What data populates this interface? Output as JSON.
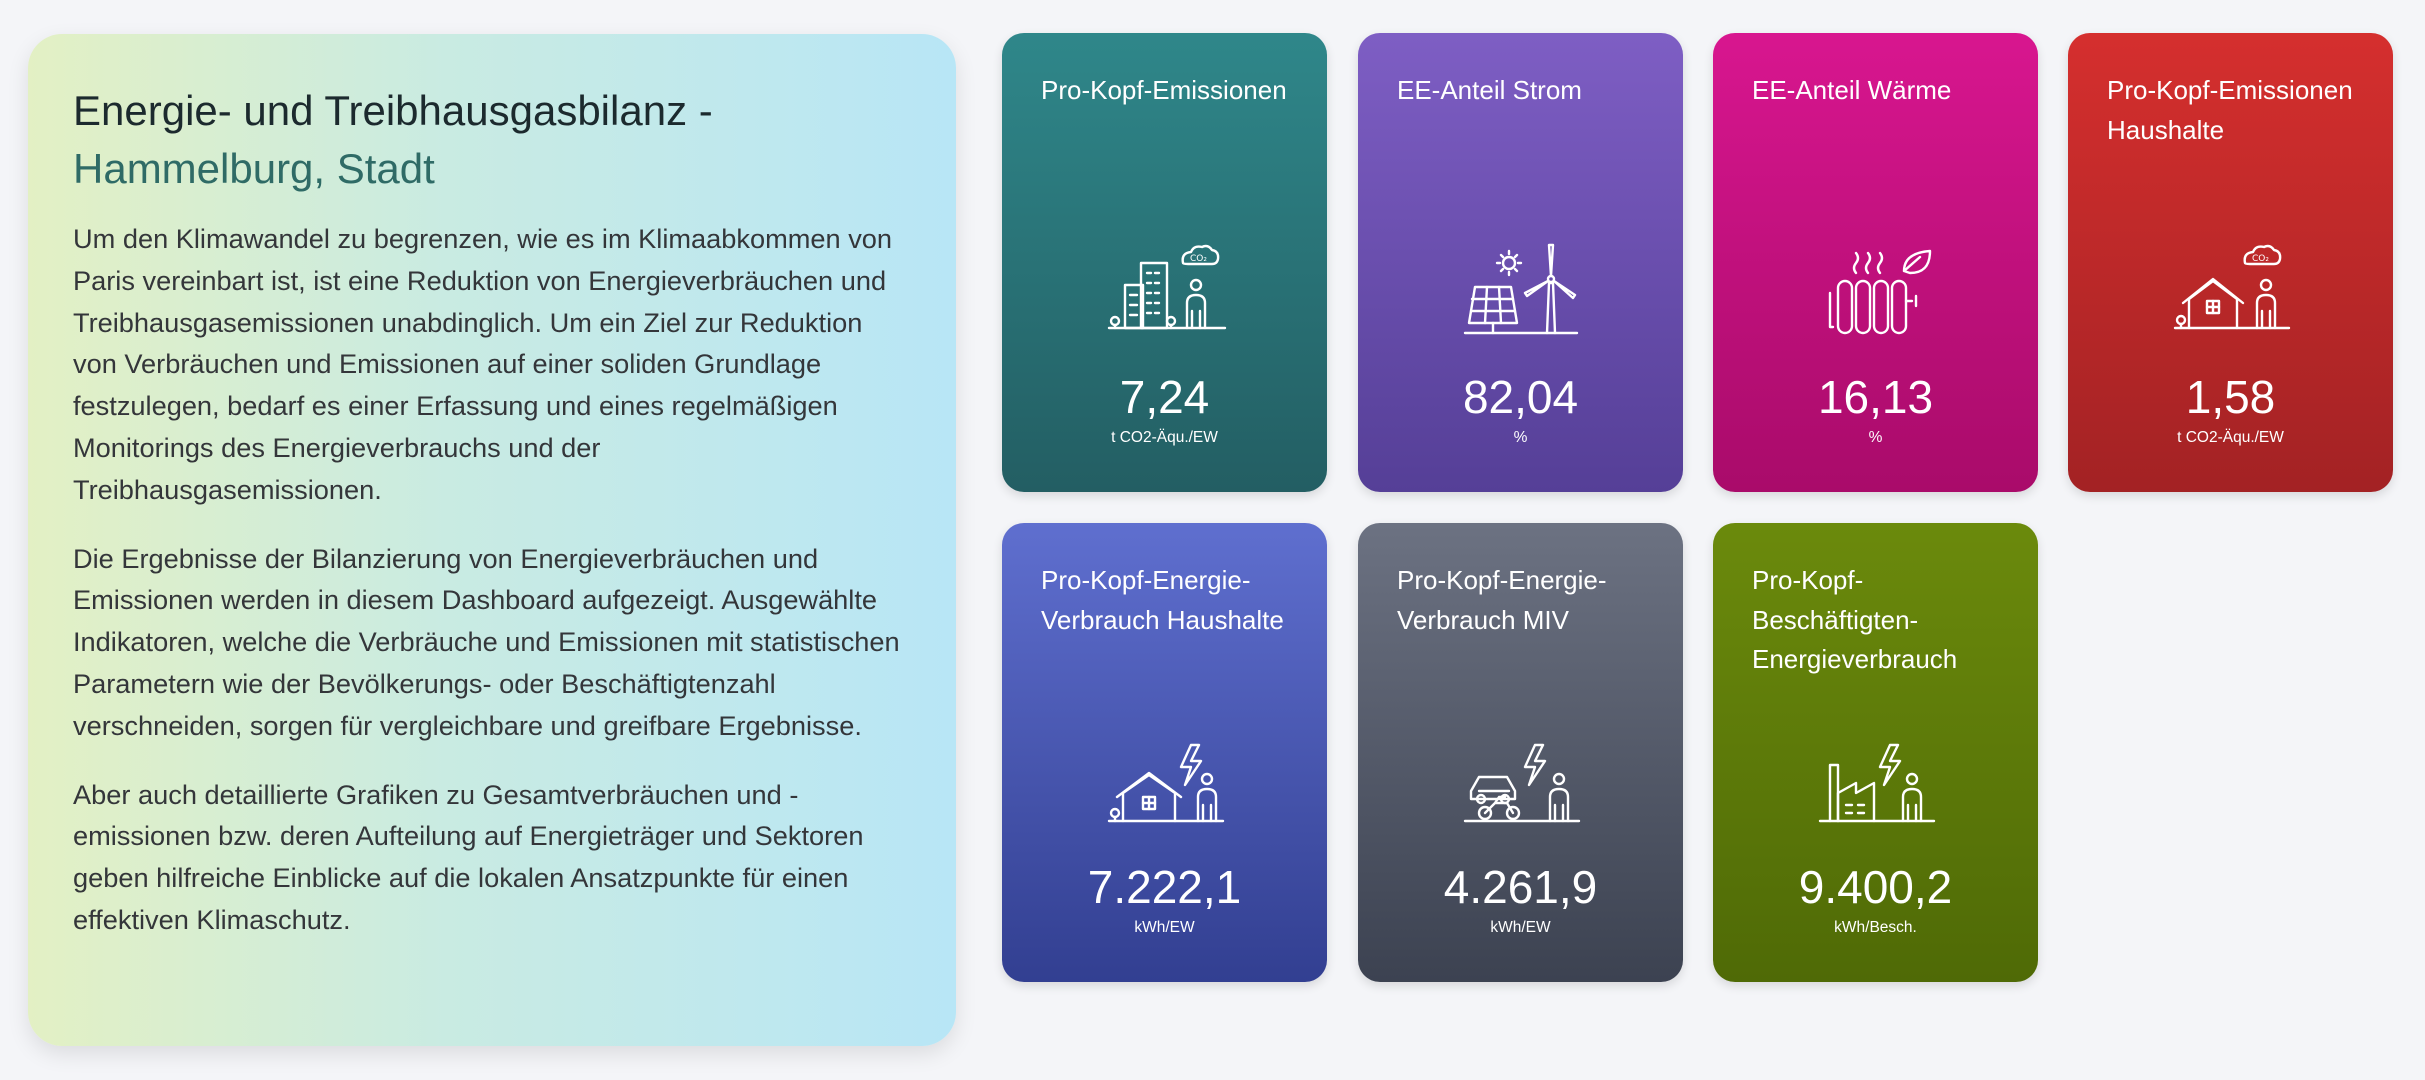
{
  "intro": {
    "title_line1": "Energie- und Treibhausgasbilanz -",
    "title_line2": "Hammelburg, Stadt",
    "paragraphs": [
      "Um den Klimawandel zu begrenzen, wie es im Klimaabkommen von Paris vereinbart ist, ist eine Reduktion von Energieverbräuchen und Treibhausgasemissionen unabdinglich. Um ein Ziel zur Reduktion von Verbräuchen und Emissionen auf einer soliden Grundlage festzulegen, bedarf es einer Erfassung und eines regelmäßigen Monitorings des Energieverbrauchs und der Treibhausgasemissionen.",
      "Die Ergebnisse der Bilanzierung von Energieverbräuchen und Emissionen werden in diesem Dashboard aufgezeigt. Ausgewählte Indikatoren, welche die Verbräuche und Emissionen mit statistischen Parametern wie der Bevölkerungs- oder Beschäftigtenzahl verschneiden, sorgen für vergleichbare und greifbare Ergebnisse.",
      "Aber auch detaillierte Grafiken zu Gesamtverbräuchen und -emissionen bzw. deren Aufteilung auf Energieträger und Sektoren geben hilfreiche Einblicke auf die lokalen Ansatzpunkte für einen effektiven Klimaschutz."
    ]
  },
  "cards": [
    {
      "title": "Pro-Kopf-Emissionen",
      "value": "7,24",
      "unit": "t CO2-Äqu./EW",
      "icon": "city-person-co2-icon",
      "color": "#2f878a"
    },
    {
      "title": "EE-Anteil Strom",
      "value": "82,04",
      "unit": "%",
      "icon": "solar-wind-icon",
      "color": "#7e5ec4"
    },
    {
      "title": "EE-Anteil Wärme",
      "value": "16,13",
      "unit": "%",
      "icon": "radiator-leaf-icon",
      "color": "#d8168f"
    },
    {
      "title": "Pro-Kopf-Emissionen Haushalte",
      "value": "1,58",
      "unit": "t CO2-Äqu./EW",
      "icon": "house-person-co2-icon",
      "color": "#d52f2e"
    },
    {
      "title": "Pro-Kopf-Energie-Verbrauch Haushalte",
      "value": "7.222,1",
      "unit": "kWh/EW",
      "icon": "house-person-energy-icon",
      "color": "#5f6fcf"
    },
    {
      "title": "Pro-Kopf-Energie-Verbrauch MIV",
      "value": "4.261,9",
      "unit": "kWh/EW",
      "icon": "vehicles-person-energy-icon",
      "color": "#6c7282"
    },
    {
      "title": "Pro-Kopf-Beschäftigten-Energieverbrauch",
      "value": "9.400,2",
      "unit": "kWh/Besch.",
      "icon": "factory-person-energy-icon",
      "color": "#6b8a0c"
    }
  ],
  "icon_text": {
    "co2": "CO₂"
  }
}
